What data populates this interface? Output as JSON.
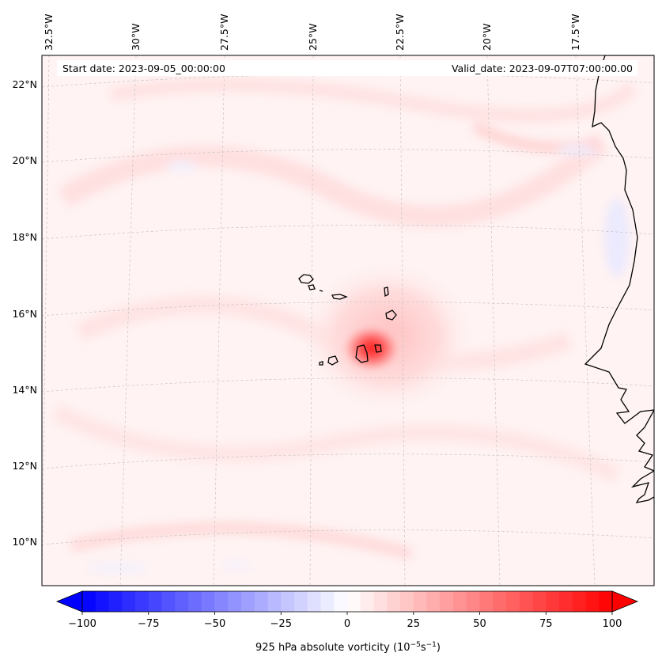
{
  "header": {
    "start_date": "Start date: 2023-09-05_00:00:00",
    "valid_date": "Valid_date: 2023-09-07T07:00:00.00"
  },
  "map": {
    "projection": "Lambert conformal (curved graticule)",
    "lon_labels": [
      "32.5°W",
      "30°W",
      "27.5°W",
      "25°W",
      "22.5°W",
      "20°W",
      "17.5°W"
    ],
    "lat_labels": [
      "22°N",
      "20°N",
      "18°N",
      "16°N",
      "14°N",
      "12°N",
      "10°N"
    ],
    "gridlines": true,
    "feature": "Cyclonic vorticity maximum near Cape Verde Islands",
    "coastlines": [
      "Cape Verde Islands",
      "West African coast"
    ]
  },
  "colorbar": {
    "colormap": "bwr",
    "min": -100,
    "max": 100,
    "extend": "both",
    "tick_labels": [
      "−100",
      "−75",
      "−50",
      "−25",
      "0",
      "25",
      "50",
      "75",
      "100"
    ],
    "label_main": "925 hPa absolute vorticity (10",
    "label_exp1": "−5",
    "label_mid": "s",
    "label_exp2": "−1",
    "label_end": ")",
    "colors": {
      "neg": "#0000ff",
      "zero": "#ffffff",
      "pos": "#ff0000"
    }
  }
}
